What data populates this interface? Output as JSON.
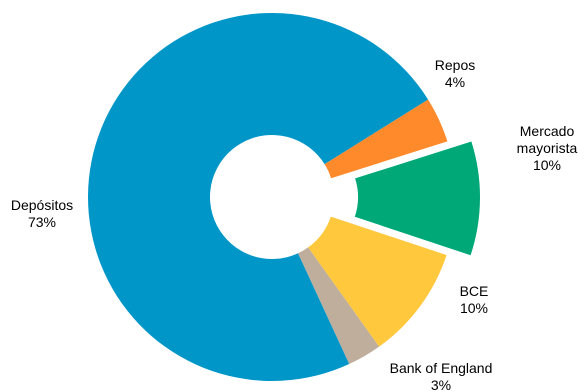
{
  "chart_data": {
    "type": "pie",
    "variant": "donut",
    "title": "",
    "slices": [
      {
        "name": "Repos",
        "value": 4,
        "label": "4%",
        "color": "#FF8A2B",
        "exploded": false
      },
      {
        "name": "Mercado mayorista",
        "name_lines": [
          "Mercado",
          "mayorista"
        ],
        "value": 10,
        "label": "10%",
        "color": "#00A878",
        "exploded": true
      },
      {
        "name": "BCE",
        "value": 10,
        "label": "10%",
        "color": "#FFC83D",
        "exploded": false
      },
      {
        "name": "Bank of England",
        "value": 3,
        "label": "3%",
        "color": "#BFAE9C",
        "exploded": false
      },
      {
        "name": "Depósitos",
        "value": 73,
        "label": "73%",
        "color": "#0096C8",
        "exploded": false
      }
    ],
    "legend": "none"
  }
}
